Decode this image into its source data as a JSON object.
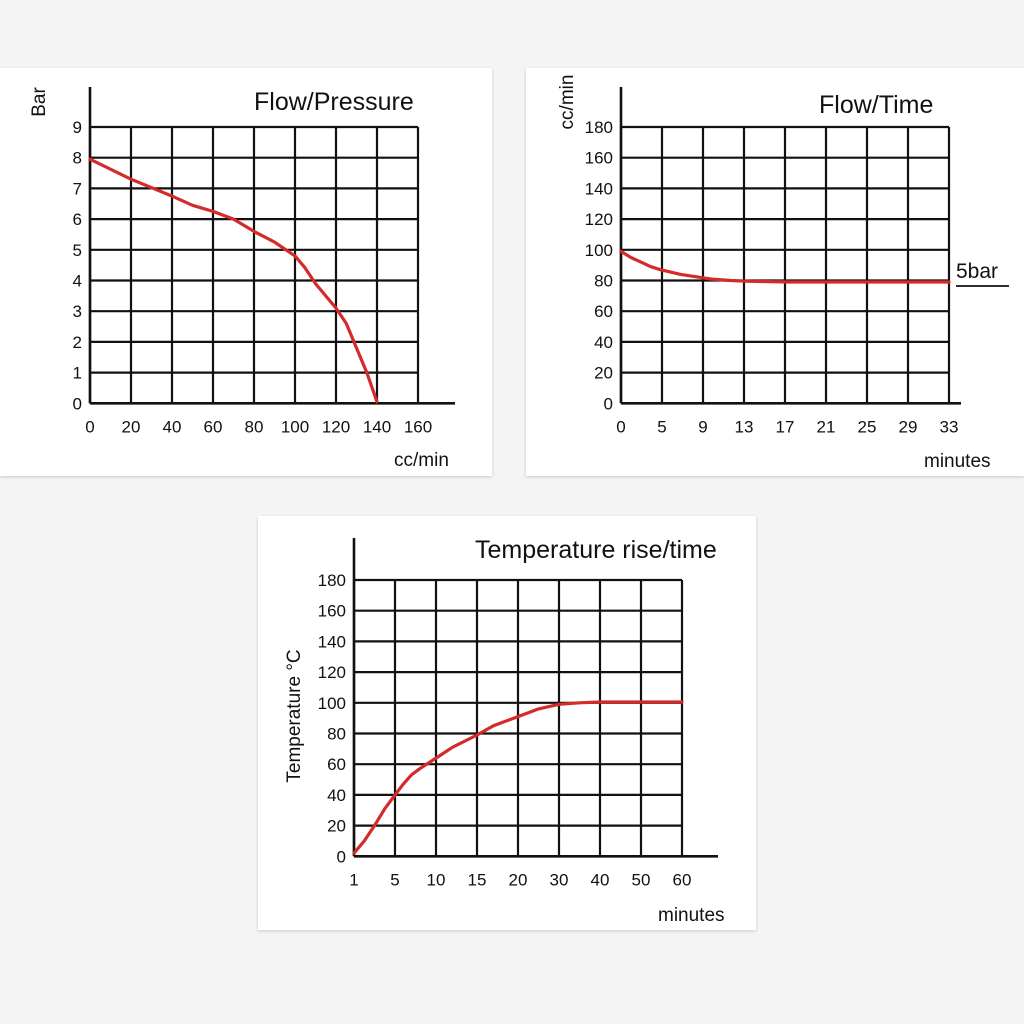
{
  "chart_data": [
    {
      "type": "line",
      "title": "Flow/Pressure",
      "xlabel": "cc/min",
      "ylabel": "Bar",
      "xlim": [
        0,
        160
      ],
      "ylim": [
        0,
        9
      ],
      "x_ticks": [
        "0",
        "20",
        "40",
        "60",
        "80",
        "100",
        "120",
        "140",
        "160"
      ],
      "y_ticks": [
        "0",
        "1",
        "2",
        "3",
        "4",
        "5",
        "6",
        "7",
        "8",
        "9"
      ],
      "grid": true,
      "series": [
        {
          "color": "#d42a2a",
          "points": [
            [
              0,
              7.95
            ],
            [
              20,
              7.3
            ],
            [
              40,
              6.75
            ],
            [
              50,
              6.45
            ],
            [
              60,
              6.25
            ],
            [
              70,
              6.0
            ],
            [
              80,
              5.6
            ],
            [
              90,
              5.25
            ],
            [
              100,
              4.8
            ],
            [
              105,
              4.4
            ],
            [
              110,
              3.9
            ],
            [
              120,
              3.1
            ],
            [
              125,
              2.6
            ],
            [
              130,
              1.8
            ],
            [
              135,
              1.0
            ],
            [
              140,
              0.05
            ]
          ]
        }
      ]
    },
    {
      "type": "line",
      "title": "Flow/Time",
      "xlabel": "minutes",
      "ylabel": "cc/min",
      "xlim": [
        0,
        33
      ],
      "ylim": [
        0,
        180
      ],
      "x_ticks": [
        "0",
        "5",
        "9",
        "13",
        "17",
        "21",
        "25",
        "29",
        "33"
      ],
      "y_ticks": [
        "0",
        "20",
        "40",
        "60",
        "80",
        "100",
        "120",
        "140",
        "160",
        "180"
      ],
      "grid": true,
      "annotation": "5bar",
      "series": [
        {
          "color": "#d42a2a",
          "points": [
            [
              0,
              99
            ],
            [
              1,
              95
            ],
            [
              2,
              92
            ],
            [
              3,
              89
            ],
            [
              4,
              87
            ],
            [
              5,
              85.5
            ],
            [
              6,
              84
            ],
            [
              7,
              83
            ],
            [
              8,
              82
            ],
            [
              9,
              81
            ],
            [
              11,
              80
            ],
            [
              13,
              79.5
            ],
            [
              17,
              79
            ],
            [
              21,
              79
            ],
            [
              25,
              79
            ],
            [
              29,
              79
            ],
            [
              33,
              79
            ]
          ]
        }
      ]
    },
    {
      "type": "line",
      "title": "Temperature rise/time",
      "xlabel": "minutes",
      "ylabel": "Temperature °C",
      "x_ticks": [
        "1",
        "5",
        "10",
        "15",
        "20",
        "30",
        "40",
        "50",
        "60"
      ],
      "y_ticks": [
        "0",
        "20",
        "40",
        "60",
        "80",
        "100",
        "120",
        "140",
        "160",
        "180"
      ],
      "ylim": [
        0,
        180
      ],
      "grid": true,
      "series": [
        {
          "color": "#d42a2a",
          "points": [
            [
              1,
              2
            ],
            [
              2,
              10
            ],
            [
              3,
              20
            ],
            [
              4,
              31
            ],
            [
              5,
              40
            ],
            [
              6,
              47
            ],
            [
              7,
              53
            ],
            [
              8,
              57
            ],
            [
              10,
              64
            ],
            [
              12,
              71
            ],
            [
              15,
              79
            ],
            [
              17,
              85
            ],
            [
              20,
              91
            ],
            [
              25,
              96
            ],
            [
              30,
              99
            ],
            [
              35,
              100
            ],
            [
              40,
              100.5
            ],
            [
              50,
              100.5
            ],
            [
              60,
              100.5
            ]
          ]
        }
      ]
    }
  ]
}
